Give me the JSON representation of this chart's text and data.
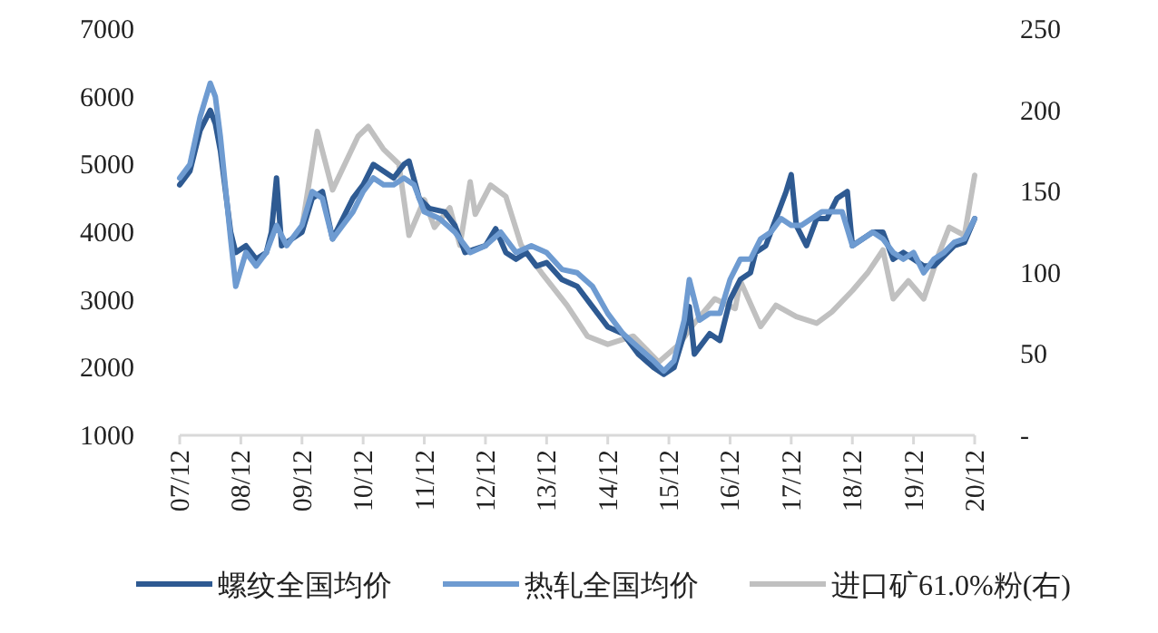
{
  "chart_data": {
    "type": "line",
    "legend": "bottom",
    "grid": false,
    "line_style": "solid",
    "xlim": [
      "2007-12",
      "2020-12"
    ],
    "xticks": [
      {
        "value": "2007-12",
        "label": "07/12"
      },
      {
        "value": "2008-12",
        "label": "08/12"
      },
      {
        "value": "2009-12",
        "label": "09/12"
      },
      {
        "value": "2010-12",
        "label": "10/12"
      },
      {
        "value": "2011-12",
        "label": "11/12"
      },
      {
        "value": "2012-12",
        "label": "12/12"
      },
      {
        "value": "2013-12",
        "label": "13/12"
      },
      {
        "value": "2014-12",
        "label": "14/12"
      },
      {
        "value": "2015-12",
        "label": "15/12"
      },
      {
        "value": "2016-12",
        "label": "16/12"
      },
      {
        "value": "2017-12",
        "label": "17/12"
      },
      {
        "value": "2018-12",
        "label": "18/12"
      },
      {
        "value": "2019-12",
        "label": "19/12"
      },
      {
        "value": "2020-12",
        "label": "20/12"
      }
    ],
    "ylim": [
      1000,
      7000
    ],
    "yticks": [
      1000,
      2000,
      3000,
      4000,
      5000,
      6000,
      7000
    ],
    "y2lim": [
      0,
      250
    ],
    "y2ticks": [
      {
        "value": 0,
        "label": "-"
      },
      50,
      100,
      150,
      200,
      250
    ],
    "series": [
      {
        "name": "螺纹全国均价",
        "color": "#2e5a92",
        "x": [
          "2007-12",
          "2008-02",
          "2008-04",
          "2008-06",
          "2008-07",
          "2008-08",
          "2008-10",
          "2008-11",
          "2009-01",
          "2009-03",
          "2009-05",
          "2009-06",
          "2009-07",
          "2009-08",
          "2009-10",
          "2009-12",
          "2010-02",
          "2010-04",
          "2010-06",
          "2010-08",
          "2010-10",
          "2010-12",
          "2011-02",
          "2011-04",
          "2011-06",
          "2011-08",
          "2011-09",
          "2011-11",
          "2012-01",
          "2012-04",
          "2012-06",
          "2012-08",
          "2012-10",
          "2012-12",
          "2013-02",
          "2013-04",
          "2013-06",
          "2013-08",
          "2013-10",
          "2013-12",
          "2014-03",
          "2014-06",
          "2014-09",
          "2014-12",
          "2015-03",
          "2015-06",
          "2015-09",
          "2015-11",
          "2016-01",
          "2016-03",
          "2016-04",
          "2016-05",
          "2016-08",
          "2016-10",
          "2016-12",
          "2017-02",
          "2017-04",
          "2017-05",
          "2017-07",
          "2017-09",
          "2017-11",
          "2017-12",
          "2018-01",
          "2018-03",
          "2018-05",
          "2018-07",
          "2018-09",
          "2018-11",
          "2018-12",
          "2019-02",
          "2019-04",
          "2019-06",
          "2019-08",
          "2019-10",
          "2019-12",
          "2020-02",
          "2020-04",
          "2020-06",
          "2020-08",
          "2020-10",
          "2020-12"
        ],
        "values": [
          4700,
          4900,
          5500,
          5800,
          5600,
          5200,
          4000,
          3700,
          3800,
          3600,
          3700,
          4000,
          4800,
          3800,
          3900,
          4000,
          4500,
          4600,
          3900,
          4200,
          4500,
          4700,
          5000,
          4900,
          4800,
          5000,
          5050,
          4500,
          4350,
          4300,
          4100,
          3700,
          3750,
          3800,
          4050,
          3700,
          3600,
          3700,
          3500,
          3550,
          3300,
          3200,
          2900,
          2600,
          2500,
          2200,
          2000,
          1900,
          2000,
          2500,
          2900,
          2200,
          2500,
          2400,
          3000,
          3300,
          3400,
          3700,
          3800,
          4200,
          4600,
          4850,
          4100,
          3800,
          4200,
          4200,
          4500,
          4600,
          3800,
          3900,
          4000,
          4000,
          3600,
          3700,
          3600,
          3500,
          3500,
          3650,
          3800,
          3850,
          4200
        ]
      },
      {
        "name": "热轧全国均价",
        "color": "#6e9bd1",
        "x": [
          "2007-12",
          "2008-02",
          "2008-04",
          "2008-06",
          "2008-07",
          "2008-08",
          "2008-10",
          "2008-11",
          "2009-01",
          "2009-03",
          "2009-05",
          "2009-07",
          "2009-09",
          "2009-12",
          "2010-02",
          "2010-04",
          "2010-06",
          "2010-08",
          "2010-10",
          "2010-12",
          "2011-02",
          "2011-04",
          "2011-06",
          "2011-08",
          "2011-10",
          "2011-12",
          "2012-03",
          "2012-06",
          "2012-09",
          "2012-12",
          "2013-03",
          "2013-06",
          "2013-09",
          "2013-12",
          "2014-03",
          "2014-06",
          "2014-09",
          "2014-12",
          "2015-03",
          "2015-06",
          "2015-09",
          "2015-11",
          "2016-01",
          "2016-03",
          "2016-04",
          "2016-06",
          "2016-08",
          "2016-10",
          "2016-12",
          "2017-02",
          "2017-04",
          "2017-06",
          "2017-08",
          "2017-10",
          "2017-12",
          "2018-02",
          "2018-04",
          "2018-06",
          "2018-08",
          "2018-10",
          "2018-12",
          "2019-02",
          "2019-04",
          "2019-06",
          "2019-08",
          "2019-10",
          "2019-12",
          "2020-02",
          "2020-04",
          "2020-06",
          "2020-08",
          "2020-10",
          "2020-12"
        ],
        "values": [
          4800,
          5000,
          5700,
          6200,
          6000,
          5400,
          3900,
          3200,
          3700,
          3500,
          3700,
          4100,
          3800,
          4100,
          4600,
          4500,
          3900,
          4100,
          4300,
          4600,
          4800,
          4700,
          4700,
          4800,
          4700,
          4300,
          4200,
          4000,
          3700,
          3800,
          4000,
          3700,
          3800,
          3700,
          3450,
          3400,
          3200,
          2800,
          2500,
          2300,
          2100,
          1950,
          2100,
          2700,
          3300,
          2700,
          2800,
          2800,
          3300,
          3600,
          3600,
          3900,
          4000,
          4200,
          4100,
          4100,
          4200,
          4300,
          4300,
          4300,
          3800,
          3900,
          4000,
          3900,
          3700,
          3600,
          3700,
          3400,
          3600,
          3700,
          3850,
          3900,
          4200
        ]
      },
      {
        "name": "进口矿61.0%粉(右)",
        "color": "#c0c0c0",
        "axis": "y2",
        "x": [
          "2009-12",
          "2010-03",
          "2010-06",
          "2010-11",
          "2011-01",
          "2011-04",
          "2011-07",
          "2011-09",
          "2011-12",
          "2012-02",
          "2012-05",
          "2012-07",
          "2012-09",
          "2012-10",
          "2013-01",
          "2013-04",
          "2013-07",
          "2013-11",
          "2014-04",
          "2014-08",
          "2014-12",
          "2015-05",
          "2015-10",
          "2016-02",
          "2016-05",
          "2016-09",
          "2017-01",
          "2017-02",
          "2017-06",
          "2017-09",
          "2018-01",
          "2018-05",
          "2018-08",
          "2018-12",
          "2019-03",
          "2019-06",
          "2019-08",
          "2019-11",
          "2020-02",
          "2020-05",
          "2020-07",
          "2020-10",
          "2020-12"
        ],
        "values": [
          128,
          187,
          151,
          184,
          190,
          176,
          167,
          123,
          145,
          128,
          140,
          117,
          156,
          136,
          154,
          147,
          117,
          100,
          80,
          61,
          56,
          61,
          45,
          56,
          69,
          84,
          78,
          95,
          67,
          80,
          73,
          69,
          76,
          89,
          100,
          114,
          84,
          95,
          84,
          112,
          128,
          123,
          160
        ]
      }
    ]
  }
}
